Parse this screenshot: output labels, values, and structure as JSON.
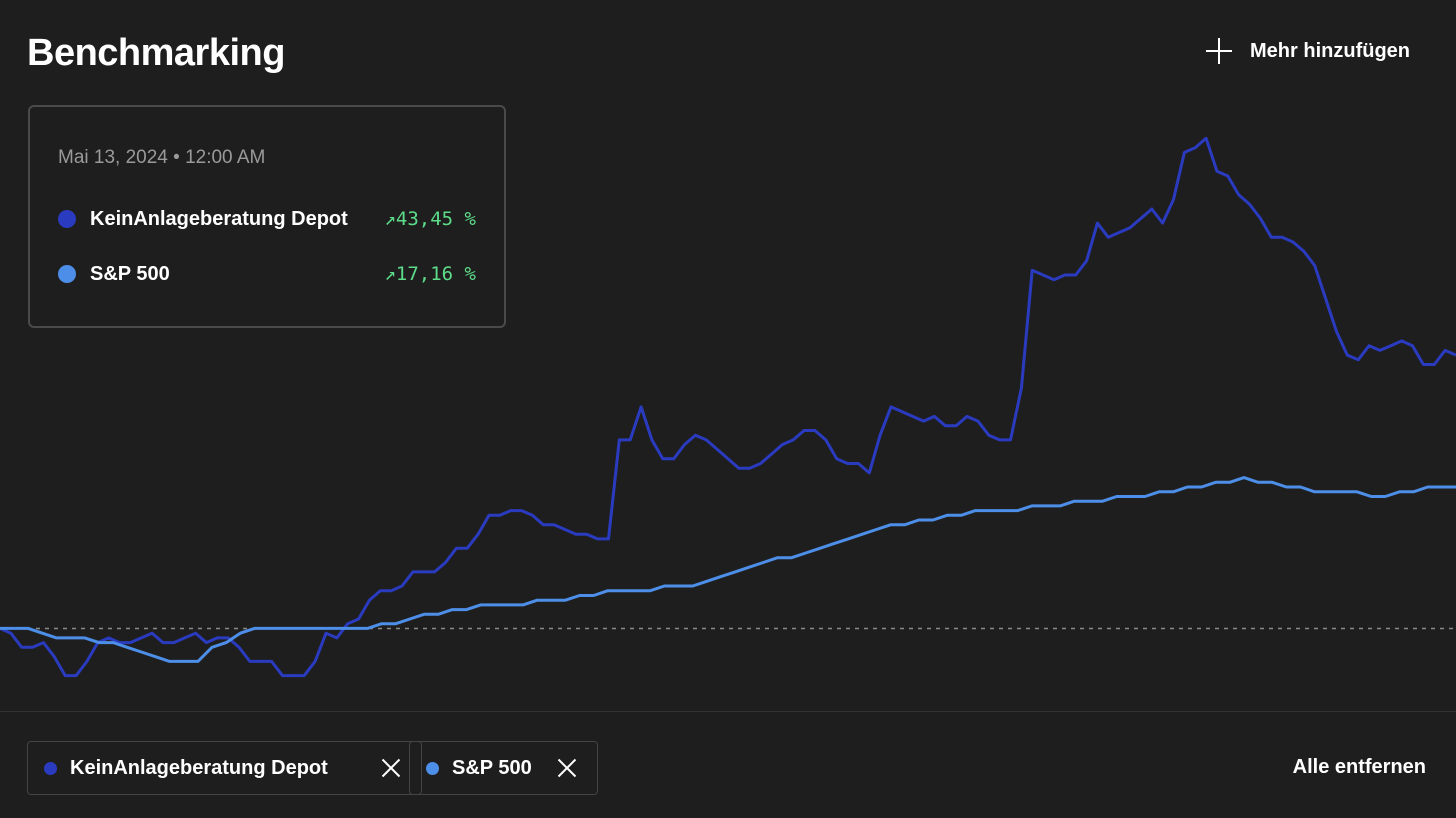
{
  "header": {
    "title": "Benchmarking",
    "add_more_label": "Mehr hinzufügen"
  },
  "tooltip": {
    "date": "Mai 13, 2024 • 12:00 AM",
    "rows": [
      {
        "name": "KeinAnlageberatung Depot",
        "change": "↗43,45 %",
        "color": "#2a3bbf"
      },
      {
        "name": "S&P 500",
        "change": "↗17,16 %",
        "color": "#4d8fe8"
      }
    ]
  },
  "chips": [
    {
      "label": "KeinAnlageberatung Depot",
      "color": "#2a3bbf"
    },
    {
      "label": "S&P 500",
      "color": "#4d8fe8"
    }
  ],
  "footer": {
    "remove_all_label": "Alle entfernen"
  },
  "colors": {
    "background": "#1e1e1e",
    "depot_line": "#2a3bbf",
    "sp500_line": "#4d8fe8",
    "positive": "#5ddc8a",
    "baseline": "#8a8a8a"
  },
  "chart_data": {
    "type": "line",
    "baseline_value": 0,
    "ylim": [
      -12,
      110
    ],
    "series": [
      {
        "name": "KeinAnlageberatung Depot",
        "color": "#2a3bbf",
        "values": [
          0,
          -1,
          -4,
          -4,
          -3,
          -6,
          -10,
          -10,
          -7,
          -3,
          -2,
          -3,
          -3,
          -2,
          -1,
          -3,
          -3,
          -2,
          -1,
          -3,
          -2,
          -2,
          -4,
          -7,
          -7,
          -7,
          -10,
          -10,
          -10,
          -7,
          -1,
          -2,
          1,
          2,
          6,
          8,
          8,
          9,
          12,
          12,
          12,
          14,
          17,
          17,
          20,
          24,
          24,
          25,
          25,
          24,
          22,
          22,
          21,
          20,
          20,
          19,
          19,
          40,
          40,
          47,
          40,
          36,
          36,
          39,
          41,
          40,
          38,
          36,
          34,
          34,
          35,
          37,
          39,
          40,
          42,
          42,
          40,
          36,
          35,
          35,
          33,
          41,
          47,
          46,
          45,
          44,
          45,
          43,
          43,
          45,
          44,
          41,
          40,
          40,
          51,
          76,
          75,
          74,
          75,
          75,
          78,
          86,
          83,
          84,
          85,
          87,
          89,
          86,
          91,
          101,
          102,
          104,
          97,
          96,
          92,
          90,
          87,
          83,
          83,
          82,
          80,
          77,
          70,
          63,
          58,
          57,
          60,
          59,
          60,
          61,
          60,
          56,
          56,
          59,
          58
        ]
      },
      {
        "name": "S&P 500",
        "color": "#4d8fe8",
        "values": [
          0,
          0,
          0,
          -1,
          -2,
          -2,
          -2,
          -3,
          -3,
          -4,
          -5,
          -6,
          -7,
          -7,
          -7,
          -4,
          -3,
          -1,
          0,
          0,
          0,
          0,
          0,
          0,
          0,
          0,
          0,
          1,
          1,
          2,
          3,
          3,
          4,
          4,
          5,
          5,
          5,
          5,
          6,
          6,
          6,
          7,
          7,
          8,
          8,
          8,
          8,
          9,
          9,
          9,
          10,
          11,
          12,
          13,
          14,
          15,
          15,
          16,
          17,
          18,
          19,
          20,
          21,
          22,
          22,
          23,
          23,
          24,
          24,
          25,
          25,
          25,
          25,
          26,
          26,
          26,
          27,
          27,
          27,
          28,
          28,
          28,
          29,
          29,
          30,
          30,
          31,
          31,
          32,
          31,
          31,
          30,
          30,
          29,
          29,
          29,
          29,
          28,
          28,
          29,
          29,
          30,
          30,
          30
        ]
      }
    ]
  }
}
